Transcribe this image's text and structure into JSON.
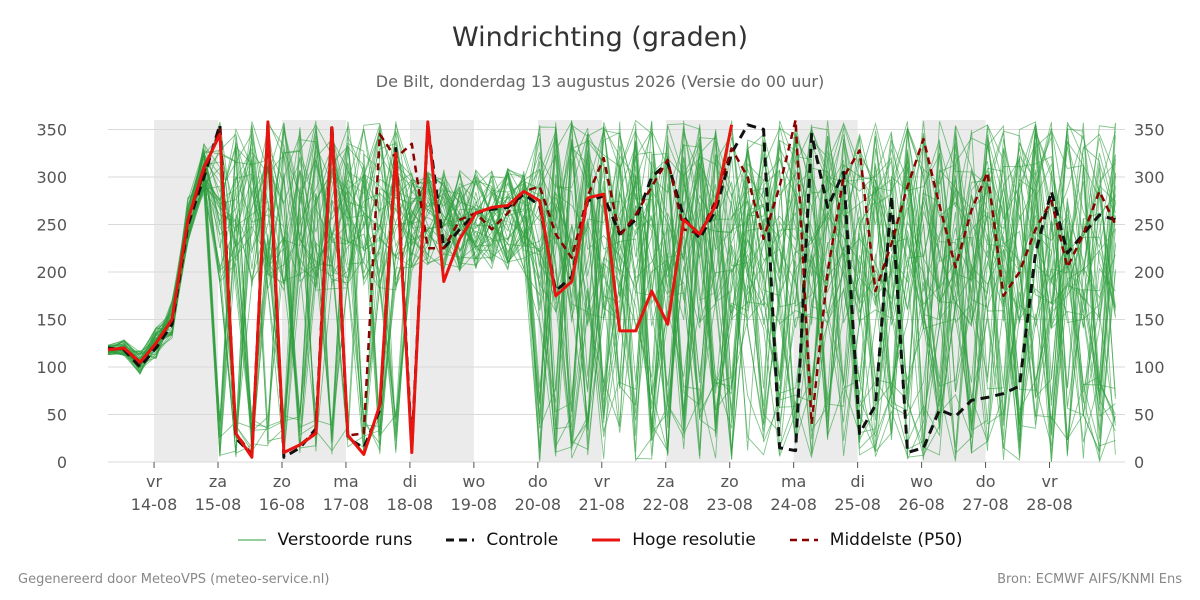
{
  "chart_data": {
    "type": "line",
    "title": "Windrichting (graden)",
    "subtitle": "De Bilt, donderdag 13 augustus 2026 (Versie do 00 uur)",
    "ylim": [
      0,
      360
    ],
    "yticks": [
      0,
      50,
      100,
      150,
      200,
      250,
      300,
      350
    ],
    "xlim": [
      0,
      15.9
    ],
    "xticks": [
      {
        "x": 0.72,
        "day": "vr",
        "date": "14-08"
      },
      {
        "x": 1.72,
        "day": "za",
        "date": "15-08"
      },
      {
        "x": 2.72,
        "day": "zo",
        "date": "16-08"
      },
      {
        "x": 3.72,
        "day": "ma",
        "date": "17-08"
      },
      {
        "x": 4.72,
        "day": "di",
        "date": "18-08"
      },
      {
        "x": 5.72,
        "day": "wo",
        "date": "19-08"
      },
      {
        "x": 6.72,
        "day": "do",
        "date": "20-08"
      },
      {
        "x": 7.72,
        "day": "vr",
        "date": "21-08"
      },
      {
        "x": 8.72,
        "day": "za",
        "date": "22-08"
      },
      {
        "x": 9.72,
        "day": "zo",
        "date": "23-08"
      },
      {
        "x": 10.72,
        "day": "ma",
        "date": "24-08"
      },
      {
        "x": 11.72,
        "day": "di",
        "date": "25-08"
      },
      {
        "x": 12.72,
        "day": "wo",
        "date": "26-08"
      },
      {
        "x": 13.72,
        "day": "do",
        "date": "27-08"
      },
      {
        "x": 14.72,
        "day": "vr",
        "date": "28-08"
      }
    ],
    "shaded_days": [
      [
        0.72,
        1.72
      ],
      [
        2.72,
        3.72
      ],
      [
        4.72,
        5.72
      ],
      [
        6.72,
        7.72
      ],
      [
        8.72,
        9.72
      ],
      [
        10.72,
        11.72
      ],
      [
        12.72,
        13.72
      ]
    ],
    "grid": "horizontal",
    "legend": "bottom",
    "legend_entries": [
      "Verstoorde runs",
      "Controle",
      "Hoge resolutie",
      "Middelste (P50)"
    ],
    "series": [
      {
        "name": "Hoge resolutie",
        "color": "#e8140f",
        "style": "solid",
        "x": [
          0,
          0.25,
          0.5,
          0.75,
          1.0,
          1.25,
          1.5,
          1.75,
          2.0,
          2.25,
          2.5,
          2.75,
          3.0,
          3.25,
          3.5,
          3.75,
          4.0,
          4.25,
          4.5,
          4.75,
          5.0,
          5.25,
          5.5,
          5.75,
          6.0,
          6.25,
          6.5,
          6.75,
          7.0,
          7.25,
          7.5,
          7.75,
          8.0,
          8.25,
          8.5,
          8.75,
          9.0,
          9.25,
          9.5,
          9.75
        ],
        "y": [
          118,
          120,
          105,
          125,
          150,
          255,
          310,
          345,
          30,
          5,
          358,
          10,
          18,
          30,
          352,
          28,
          8,
          60,
          325,
          10,
          358,
          190,
          235,
          262,
          268,
          270,
          285,
          275,
          175,
          190,
          278,
          282,
          138,
          138,
          180,
          145,
          255,
          240,
          270,
          355
        ]
      },
      {
        "name": "Controle",
        "color": "#111111",
        "style": "dashed",
        "x": [
          0,
          0.25,
          0.5,
          0.75,
          1.0,
          1.25,
          1.5,
          1.75,
          2.0,
          2.25,
          2.5,
          2.75,
          3.0,
          3.25,
          3.5,
          3.75,
          4.0,
          4.25,
          4.5,
          4.75,
          5.0,
          5.25,
          5.5,
          5.75,
          6.0,
          6.25,
          6.5,
          6.75,
          7.0,
          7.25,
          7.5,
          7.75,
          8.0,
          8.25,
          8.5,
          8.75,
          9.0,
          9.25,
          9.5,
          9.75,
          10.0,
          10.25,
          10.5,
          10.75,
          11.0,
          11.25,
          11.5,
          11.75,
          12.0,
          12.25,
          12.5,
          12.75,
          13.0,
          13.25,
          13.5,
          13.75,
          14.0,
          14.25,
          14.5,
          14.75,
          15.0,
          15.25,
          15.5,
          15.75
        ],
        "y": [
          120,
          118,
          100,
          120,
          145,
          250,
          300,
          355,
          25,
          8,
          355,
          5,
          15,
          35,
          355,
          25,
          15,
          55,
          330,
          15,
          355,
          225,
          245,
          262,
          266,
          268,
          282,
          270,
          180,
          195,
          275,
          280,
          240,
          255,
          300,
          315,
          258,
          235,
          265,
          325,
          355,
          350,
          15,
          12,
          345,
          268,
          305,
          30,
          60,
          280,
          10,
          15,
          55,
          48,
          65,
          68,
          72,
          80,
          220,
          285,
          220,
          240,
          260,
          255
        ]
      },
      {
        "name": "Middelste (P50)",
        "color": "#8b0000",
        "style": "dashed",
        "x": [
          0,
          0.25,
          0.5,
          0.75,
          1.0,
          1.25,
          1.5,
          1.75,
          2.0,
          2.25,
          2.5,
          2.75,
          3.0,
          3.25,
          3.5,
          3.75,
          4.0,
          4.25,
          4.5,
          4.75,
          5.0,
          5.25,
          5.5,
          5.75,
          6.0,
          6.25,
          6.5,
          6.75,
          7.0,
          7.25,
          7.5,
          7.75,
          8.0,
          8.25,
          8.5,
          8.75,
          9.0,
          9.25,
          9.5,
          9.75,
          10.0,
          10.25,
          10.5,
          10.75,
          11.0,
          11.25,
          11.5,
          11.75,
          12.0,
          12.25,
          12.5,
          12.75,
          13.0,
          13.25,
          13.5,
          13.75,
          14.0,
          14.25,
          14.5,
          14.75,
          15.0,
          15.25,
          15.5,
          15.75
        ],
        "y": [
          119,
          119,
          104,
          125,
          150,
          255,
          305,
          350,
          30,
          8,
          355,
          10,
          18,
          32,
          352,
          28,
          30,
          345,
          320,
          335,
          225,
          225,
          255,
          262,
          245,
          262,
          285,
          290,
          240,
          215,
          280,
          320,
          238,
          260,
          290,
          318,
          245,
          240,
          275,
          330,
          300,
          235,
          290,
          360,
          40,
          200,
          300,
          328,
          180,
          230,
          290,
          340,
          270,
          205,
          265,
          305,
          175,
          200,
          245,
          275,
          205,
          240,
          285,
          250
        ]
      }
    ]
  },
  "footer": {
    "left": "Gegenereerd door MeteoVPS (meteo-service.nl)",
    "right": "Bron: ECMWF AIFS/KNMI Ens"
  },
  "colors": {
    "ensemble": "#2e9e3e",
    "shade": "#ebebeb",
    "grid": "#d9d9d9"
  }
}
